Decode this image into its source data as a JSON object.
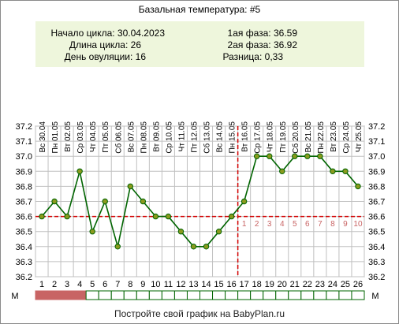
{
  "header": {
    "title": "Базальная температура: #5",
    "info_left": [
      "Начало цикла: 30.04.2023",
      "Длина цикла: 26",
      "День овуляции: 16"
    ],
    "info_right": [
      "1ая фаза: 36.59",
      "2ая фаза: 36.92",
      "Разница: 0,33"
    ]
  },
  "footer": {
    "text": "Постройте свой график на BabyPlan.ru"
  },
  "colors": {
    "line": "#006400",
    "point_fill": "#8a9a1e",
    "coverline": "#d40000",
    "grid": "#c0c0c0",
    "info_bg": "#eef6dc",
    "menstruation": "#c86464",
    "phase_numbers": "#c86464"
  },
  "chart_data": {
    "type": "line",
    "title": "Базальная температура: #5",
    "xlabel": "",
    "ylabel": "",
    "x": [
      1,
      2,
      3,
      4,
      5,
      6,
      7,
      8,
      9,
      10,
      11,
      12,
      13,
      14,
      15,
      16,
      17,
      18,
      19,
      20,
      21,
      22,
      23,
      24,
      25,
      26
    ],
    "dates": [
      "Вс 30.04",
      "Пн 01.05",
      "Вт 02.05",
      "Ср 03.05",
      "Чт 04.05",
      "Пт 05.05",
      "Сб 06.05",
      "Вс 07.05",
      "Пн 08.05",
      "Вт 09.05",
      "Ср 10.05",
      "Чт 11.05",
      "Пт 12.05",
      "Сб 13.05",
      "Вс 14.05",
      "Пн 15.05",
      "Вт 16.05",
      "Ср 17.05",
      "Чт 18.05",
      "Пт 19.05",
      "Сб 20.05",
      "Вс 21.05",
      "Пн 22.05",
      "Вт 23.05",
      "Ср 24.05",
      "Чт 25.05"
    ],
    "series": [
      {
        "values": [
          36.6,
          36.7,
          36.6,
          36.9,
          36.5,
          36.7,
          36.4,
          36.8,
          36.7,
          36.6,
          36.6,
          36.5,
          36.4,
          36.4,
          36.5,
          36.6,
          36.7,
          37.0,
          37.0,
          36.9,
          37.0,
          37.0,
          37.0,
          36.9,
          36.9,
          36.8
        ]
      }
    ],
    "y_ticks": [
      "36.2",
      "36.3",
      "36.4",
      "36.5",
      "36.6",
      "36.7",
      "36.8",
      "36.9",
      "37.0",
      "37.1",
      "37.2"
    ],
    "ylim": [
      36.2,
      37.2
    ],
    "coverline_value": 36.6,
    "ovulation_day": 16,
    "phase_day_numbers": [
      "1",
      "2",
      "3",
      "4",
      "5",
      "6",
      "7",
      "8",
      "9",
      "10"
    ],
    "menstruation_days": 4,
    "menstruation_label": "М",
    "grid": true
  }
}
